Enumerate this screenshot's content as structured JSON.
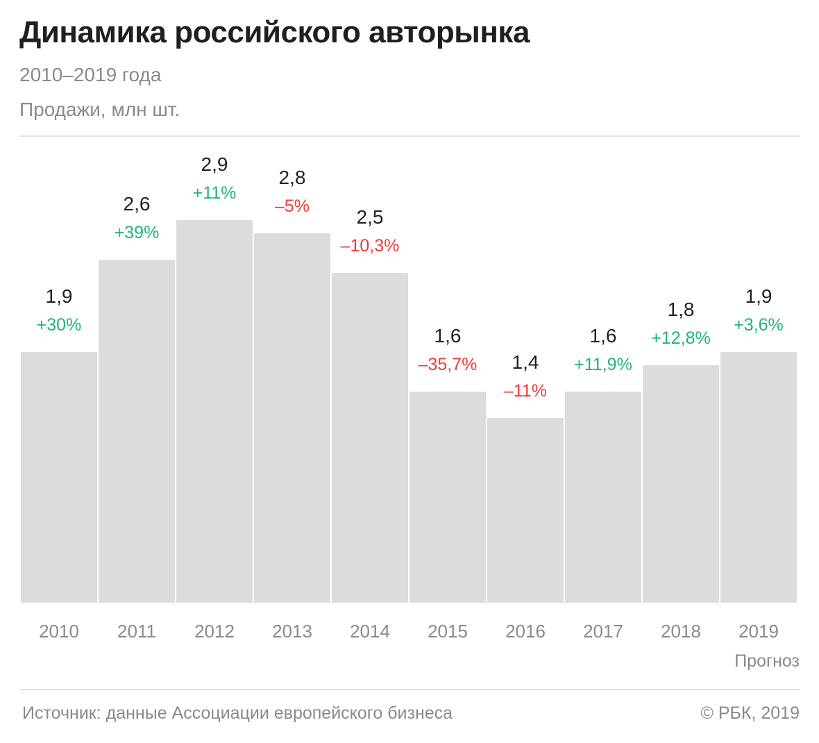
{
  "header": {
    "title": "Динамика российского авторынка",
    "period": "2010–2019 года",
    "units": "Продажи, млн шт."
  },
  "chart_data": {
    "type": "bar",
    "categories": [
      "2010",
      "2011",
      "2012",
      "2013",
      "2014",
      "2015",
      "2016",
      "2017",
      "2018",
      "2019"
    ],
    "values": [
      1.9,
      2.6,
      2.9,
      2.8,
      2.5,
      1.6,
      1.4,
      1.6,
      1.8,
      1.9
    ],
    "value_labels": [
      "1,9",
      "2,6",
      "2,9",
      "2,8",
      "2,5",
      "1,6",
      "1,4",
      "1,6",
      "1,8",
      "1,9"
    ],
    "change_labels": [
      "+30%",
      "+39%",
      "+11%",
      "–5%",
      "–10,3%",
      "–35,7%",
      "–11%",
      "+11,9%",
      "+12,8%",
      "+3,6%"
    ],
    "change_values": [
      30,
      39,
      11,
      -5,
      -10.3,
      -35.7,
      -11,
      11.9,
      12.8,
      3.6
    ],
    "ylim": [
      0,
      3.4
    ],
    "grid": false,
    "legend": "none",
    "note": "Прогноз",
    "colors": {
      "bar": "#dcdcdc",
      "positive": "#1fb578",
      "negative": "#ee3b3b",
      "value_text": "#222222",
      "axis_text": "#8a8a8a"
    }
  },
  "footer": {
    "source": "Источник: данные Ассоциации европейского бизнеса",
    "copyright": "© РБК, 2019"
  }
}
